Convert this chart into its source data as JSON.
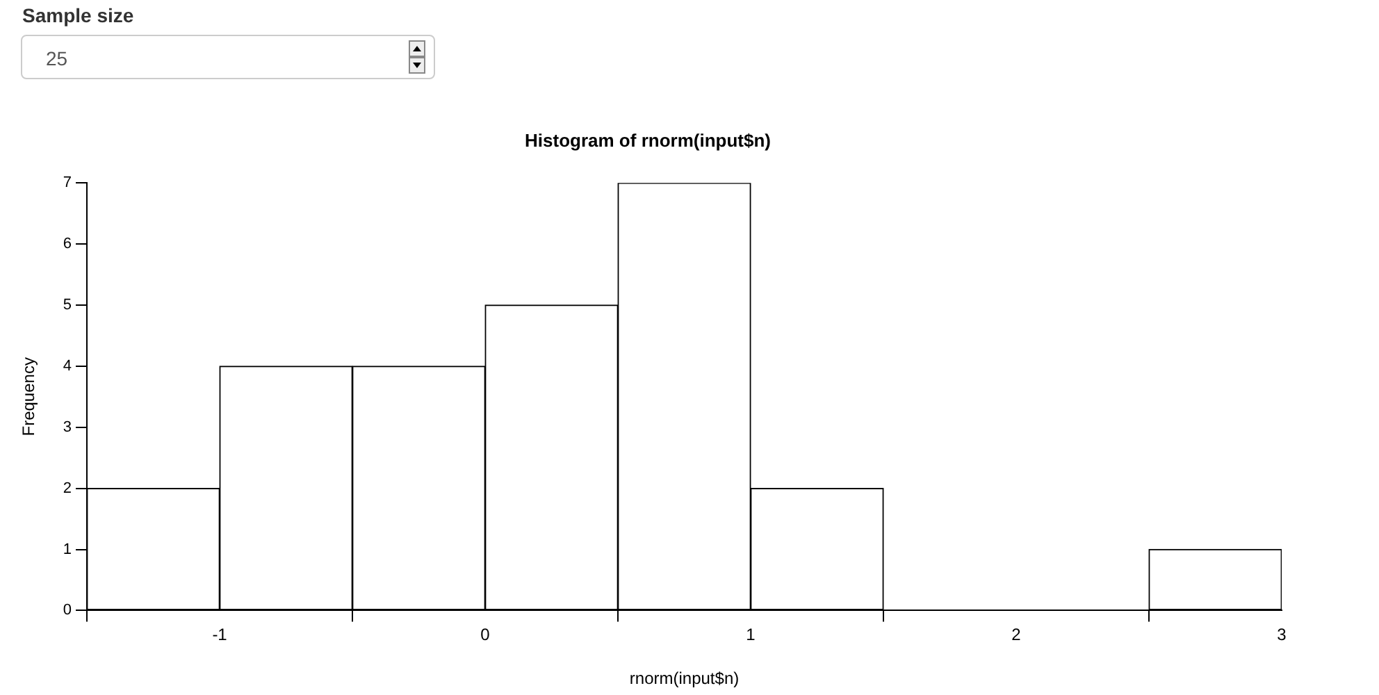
{
  "chart_data": {
    "type": "histogram",
    "title": "Histogram of rnorm(input$n)",
    "xlabel": "rnorm(input$n)",
    "ylabel": "Frequency",
    "annotations": [
      "Sample size",
      "25"
    ],
    "bins": [
      -1.5,
      -1,
      -0.5,
      0,
      0.5,
      1,
      1.5,
      2,
      2.5,
      3
    ],
    "values": [
      2,
      4,
      4,
      5,
      7,
      2,
      0,
      0,
      1
    ],
    "color": "#ffffff",
    "xlim": [
      -1.5,
      3
    ],
    "xticks": [
      -1,
      0,
      1,
      2,
      3
    ],
    "ylim": [
      0,
      7
    ],
    "yticks": [
      0,
      1,
      2,
      3,
      4,
      5,
      6,
      7
    ],
    "grid": false,
    "legend": false
  }
}
